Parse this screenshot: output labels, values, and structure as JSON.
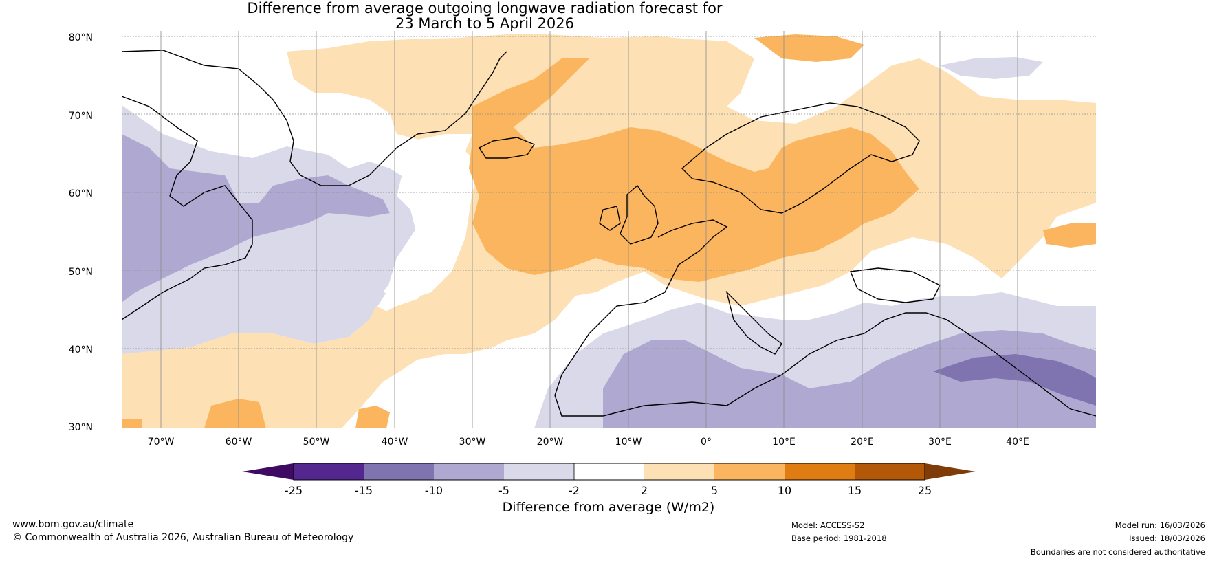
{
  "title": {
    "line1": "Difference from average outgoing longwave radiation forecast for",
    "line2": "23 March to 5 April 2026"
  },
  "map": {
    "lat_labels": [
      "80°N",
      "70°N",
      "60°N",
      "50°N",
      "40°N",
      "30°N"
    ],
    "lon_labels": [
      "70°W",
      "60°W",
      "50°W",
      "40°W",
      "30°W",
      "20°W",
      "10°W",
      "0°",
      "10°E",
      "20°E",
      "30°E",
      "40°E"
    ],
    "lat_range": [
      30,
      80
    ],
    "lon_range": [
      -75,
      50
    ]
  },
  "colorbar": {
    "label": "Difference from average (W/m2)",
    "ticks": [
      "-25",
      "-15",
      "-10",
      "-5",
      "-2",
      "2",
      "5",
      "10",
      "15",
      "25"
    ],
    "colors": [
      "#3f0a63",
      "#54278f",
      "#7f73b0",
      "#afa9d2",
      "#d9d9ea",
      "#ffffff",
      "#fde0b4",
      "#fbb55f",
      "#e07d12",
      "#b35806",
      "#7f3b08"
    ]
  },
  "legend_classes": {
    "neg10_neg5": "#afa9d2",
    "neg5_neg2": "#d9d9ea",
    "neg2_2": "#ffffff",
    "pos2_5": "#fde0b4",
    "pos5_10": "#fbb55f",
    "neg15_neg10": "#7f73b0"
  },
  "footer": {
    "website": "www.bom.gov.au/climate",
    "copyright": "© Commonwealth of Australia 2026, Australian Bureau of Meteorology",
    "model": "Model: ACCESS-S2",
    "base_period": "Base period: 1981-2018",
    "model_run": "Model run: 16/03/2026",
    "issued": "Issued: 18/03/2026",
    "boundaries": "Boundaries are not considered authoritative"
  }
}
